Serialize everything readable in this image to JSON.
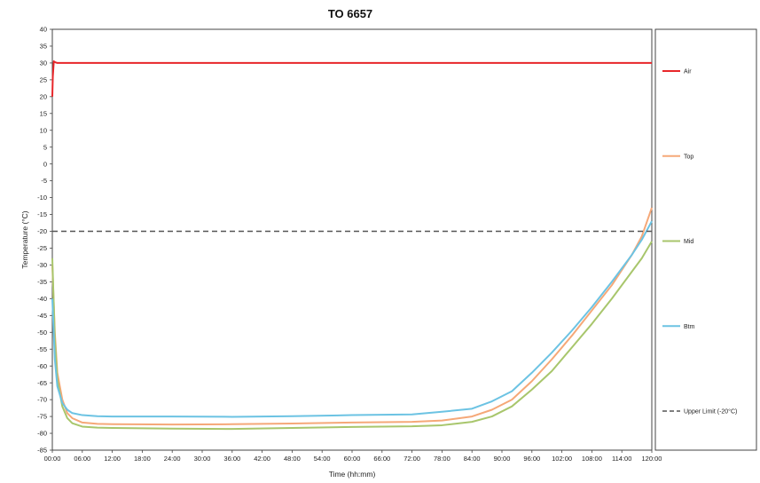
{
  "chart_data": {
    "type": "line",
    "title": "TO 6657",
    "xlabel": "Time (hh:mm)",
    "ylabel": "Temperature (°C)",
    "xlim": [
      0,
      120
    ],
    "ylim": [
      -85,
      40
    ],
    "y_ticks": [
      40,
      35,
      30,
      25,
      20,
      15,
      10,
      5,
      0,
      -5,
      -10,
      -15,
      -20,
      -25,
      -30,
      -35,
      -40,
      -45,
      -50,
      -55,
      -60,
      -65,
      -70,
      -75,
      -80,
      -85
    ],
    "x_ticks": [
      "00:00",
      "06:00",
      "12:00",
      "18:00",
      "24:00",
      "30:00",
      "36:00",
      "42:00",
      "48:00",
      "54:00",
      "60:00",
      "66:00",
      "72:00",
      "78:00",
      "84:00",
      "90:00",
      "96:00",
      "102:00",
      "108:00",
      "114:00",
      "120:00"
    ],
    "grid": false,
    "legend_position": "right",
    "series": [
      {
        "name": "Air",
        "color": "#e8262a",
        "dash": "solid",
        "x": [
          0,
          0.1,
          0.3,
          0.6,
          1,
          2,
          6,
          12,
          24,
          48,
          72,
          96,
          108,
          118,
          120
        ],
        "y": [
          20,
          26,
          30.5,
          30.2,
          30,
          30,
          30,
          30,
          30,
          30,
          30,
          30,
          30,
          30,
          30
        ]
      },
      {
        "name": "Top",
        "color": "#f5a878",
        "dash": "solid",
        "x": [
          0,
          0.5,
          1,
          2,
          3,
          4,
          6,
          9,
          12,
          24,
          36,
          48,
          60,
          72,
          78,
          84,
          88,
          92,
          96,
          100,
          104,
          108,
          112,
          116,
          118,
          120
        ],
        "y": [
          -30,
          -50,
          -62,
          -70,
          -74,
          -75.5,
          -76.8,
          -77.2,
          -77.3,
          -77.4,
          -77.3,
          -77.1,
          -76.8,
          -76.6,
          -76.2,
          -75,
          -73,
          -70,
          -64.5,
          -58,
          -51,
          -43.5,
          -36,
          -27,
          -21.5,
          -13
        ]
      },
      {
        "name": "Mid",
        "color": "#a8c66c",
        "dash": "solid",
        "x": [
          0,
          0.5,
          1,
          2,
          3,
          4,
          6,
          9,
          12,
          24,
          36,
          48,
          60,
          72,
          78,
          84,
          88,
          92,
          96,
          100,
          104,
          108,
          112,
          116,
          118,
          120
        ],
        "y": [
          -28,
          -52,
          -64,
          -72,
          -75.5,
          -77,
          -78,
          -78.3,
          -78.4,
          -78.6,
          -78.7,
          -78.4,
          -78.1,
          -77.9,
          -77.6,
          -76.6,
          -75,
          -72,
          -67,
          -61.5,
          -54.5,
          -47.5,
          -40,
          -32,
          -28,
          -23
        ]
      },
      {
        "name": "Btm",
        "color": "#6cc3e3",
        "dash": "solid",
        "x": [
          0,
          0.5,
          1,
          2,
          3,
          4,
          6,
          9,
          12,
          24,
          36,
          48,
          60,
          72,
          78,
          84,
          88,
          92,
          96,
          100,
          104,
          108,
          112,
          116,
          118,
          120
        ],
        "y": [
          -40,
          -58,
          -66,
          -71,
          -73,
          -74,
          -74.6,
          -74.9,
          -75,
          -75,
          -75.1,
          -74.9,
          -74.6,
          -74.4,
          -73.6,
          -72.7,
          -70.5,
          -67.5,
          -62,
          -56,
          -49.5,
          -42.5,
          -35,
          -27,
          -22.5,
          -17
        ]
      },
      {
        "name": "Upper Limit (-20°C)",
        "color": "#555555",
        "dash": "dashed",
        "x": [
          0,
          120
        ],
        "y": [
          -20,
          -20
        ]
      }
    ]
  }
}
